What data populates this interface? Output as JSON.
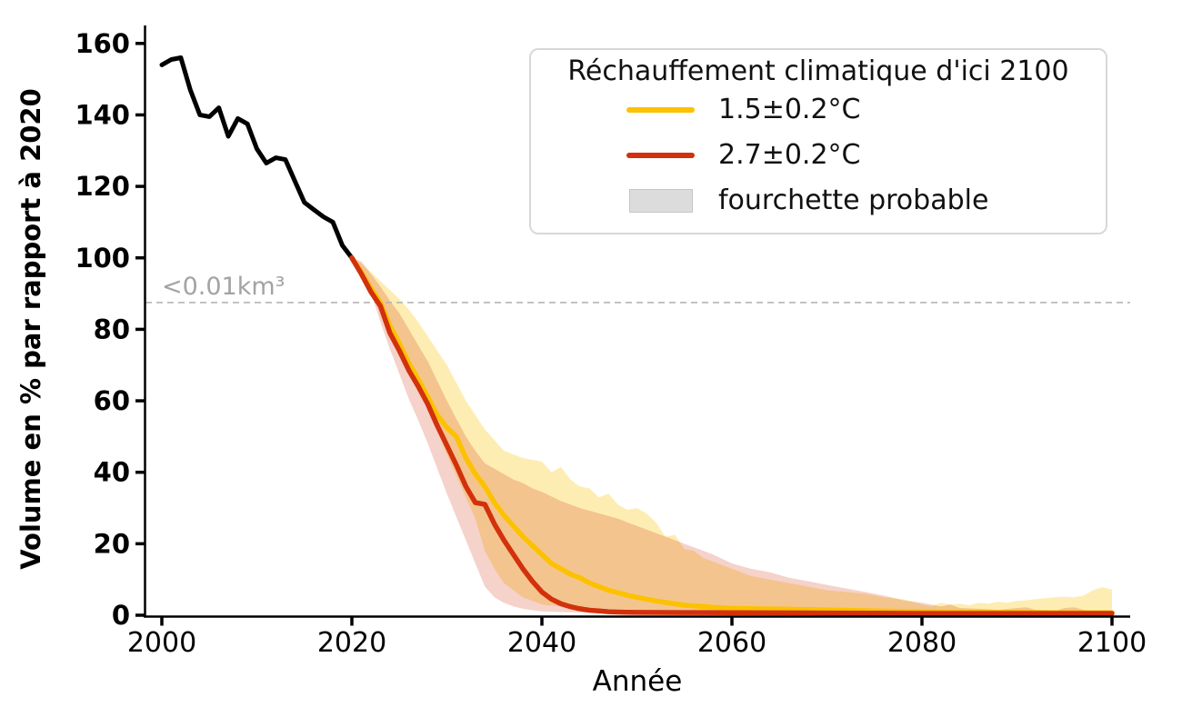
{
  "chart_data": {
    "type": "line",
    "title": "",
    "xlabel": "Année",
    "ylabel": "Volume en % par rapport à 2020",
    "xlim": [
      1998.3,
      2101.8
    ],
    "ylim": [
      0,
      164
    ],
    "xticks": [
      2000,
      2020,
      2040,
      2060,
      2080,
      2100
    ],
    "yticks": [
      0,
      20,
      40,
      60,
      80,
      100,
      120,
      140,
      160
    ],
    "grid": false,
    "annotation": {
      "text": "<0.01km³",
      "y": 87.5,
      "color": "#a3a3a3",
      "line_color": "#b5b5b5"
    },
    "legend": {
      "position": "upper right",
      "title": "Réchauffement climatique d'ici 2100",
      "entries": [
        {
          "type": "line",
          "color": "#fcc200",
          "label": "1.5±0.2°C"
        },
        {
          "type": "line",
          "color": "#d2310c",
          "label": "2.7±0.2°C"
        },
        {
          "type": "patch",
          "color": "#dcdcdc",
          "label": "fourchette probable"
        }
      ]
    },
    "series": [
      {
        "name": "volume-historique",
        "color": "#000000",
        "width": 5,
        "x": [
          2000,
          2001,
          2002,
          2003,
          2004,
          2005,
          2006,
          2007,
          2008,
          2009,
          2010,
          2011,
          2012,
          2013,
          2014,
          2015,
          2016,
          2017,
          2018,
          2019,
          2020
        ],
        "y": [
          154,
          155.5,
          156,
          147,
          140,
          139.5,
          142,
          134,
          139,
          137.5,
          130.5,
          126.5,
          128,
          127.5,
          121.5,
          115.5,
          113.5,
          111.5,
          110,
          103.5,
          100
        ]
      },
      {
        "name": "scenario-1.5C",
        "color": "#fcc200",
        "width": 5.5,
        "x": [
          2020,
          2021,
          2022,
          2023,
          2024,
          2025,
          2026,
          2027,
          2028,
          2029,
          2030,
          2031,
          2032,
          2033,
          2034,
          2035,
          2036,
          2037,
          2038,
          2039,
          2040,
          2041,
          2042,
          2043,
          2044,
          2045,
          2046,
          2047,
          2048,
          2049,
          2050,
          2052,
          2055,
          2058,
          2060,
          2065,
          2070,
          2075,
          2080,
          2085,
          2090,
          2095,
          2100
        ],
        "y": [
          100,
          96,
          91.5,
          87.5,
          81,
          76,
          70.5,
          66,
          61,
          56,
          52.5,
          50,
          44,
          39.5,
          36,
          31.5,
          28,
          25,
          22,
          19.5,
          17,
          14.5,
          13,
          11.5,
          10.5,
          9,
          8,
          7,
          6.3,
          5.6,
          5,
          4,
          2.8,
          2.2,
          1.9,
          1.7,
          1.5,
          1.2,
          1,
          0.9,
          0.8,
          0.7,
          0.7
        ]
      },
      {
        "name": "scenario-2.7C",
        "color": "#d2310c",
        "width": 5.5,
        "x": [
          2020,
          2021,
          2022,
          2023,
          2024,
          2025,
          2026,
          2027,
          2028,
          2029,
          2030,
          2031,
          2032,
          2033,
          2034,
          2035,
          2036,
          2037,
          2038,
          2039,
          2040,
          2041,
          2042,
          2043,
          2044,
          2045,
          2046,
          2047,
          2048,
          2049,
          2050,
          2055,
          2060,
          2065,
          2070,
          2075,
          2080,
          2085,
          2090,
          2095,
          2100
        ],
        "y": [
          100,
          95.5,
          90.5,
          86.5,
          79,
          74,
          68.5,
          64,
          59,
          53,
          47.5,
          42,
          36,
          31.5,
          31,
          25.5,
          21,
          17,
          13,
          9.5,
          6.5,
          4.5,
          3.2,
          2.4,
          1.8,
          1.4,
          1.2,
          1,
          0.9,
          0.85,
          0.8,
          0.75,
          0.7,
          0.65,
          0.6,
          0.55,
          0.5,
          0.5,
          0.5,
          0.5,
          0.5
        ]
      }
    ],
    "bands": [
      {
        "name": "fourchette-1.5C",
        "color": "#fcc200",
        "opacity": 0.3,
        "x": [
          2020,
          2021,
          2022,
          2023,
          2024,
          2025,
          2026,
          2027,
          2028,
          2029,
          2030,
          2031,
          2032,
          2033,
          2034,
          2035,
          2036,
          2037,
          2038,
          2039,
          2040,
          2041,
          2042,
          2043,
          2044,
          2045,
          2046,
          2047,
          2048,
          2049,
          2050,
          2051,
          2052,
          2053,
          2054,
          2055,
          2056,
          2057,
          2058,
          2060,
          2062,
          2064,
          2066,
          2068,
          2070,
          2072,
          2074,
          2076,
          2078,
          2080,
          2081,
          2082,
          2083,
          2084,
          2085,
          2086,
          2087,
          2088,
          2089,
          2090,
          2091,
          2092,
          2093,
          2094,
          2095,
          2096,
          2097,
          2098,
          2099,
          2100
        ],
        "upper": [
          100,
          98.5,
          96,
          93.5,
          91,
          88.5,
          85.5,
          82,
          78,
          74,
          70,
          65,
          60,
          56,
          52,
          49,
          46,
          45,
          44,
          43.5,
          43,
          40,
          41.5,
          38,
          36,
          35.5,
          33,
          34,
          31,
          29.5,
          30,
          28.5,
          26,
          22,
          22.5,
          18.5,
          18,
          16,
          15,
          13,
          11,
          10,
          9,
          8,
          7,
          6.5,
          6,
          5,
          4.5,
          3,
          2.5,
          3.5,
          3,
          3.2,
          2.8,
          3.5,
          3.2,
          3.8,
          3.5,
          4,
          4.2,
          4.5,
          4.8,
          5,
          5.2,
          5,
          5.5,
          7,
          7.8,
          7.2
        ],
        "lower": [
          100,
          97,
          93,
          87.5,
          80,
          74,
          68,
          63,
          58,
          51.5,
          45,
          39,
          33,
          27,
          18,
          13,
          9,
          7,
          5,
          4,
          3,
          2.7,
          2.5,
          2.3,
          2.1,
          2,
          1.9,
          1.8,
          1.7,
          1.6,
          1.5,
          1.4,
          1.35,
          1.3,
          1.25,
          1.2,
          1.15,
          1.1,
          1.05,
          1,
          0.95,
          0.9,
          0.85,
          0.8,
          0.75,
          0.7,
          0.65,
          0.6,
          0.55,
          0.5,
          0.5,
          0.5,
          0.5,
          0.5,
          0.45,
          0.45,
          0.45,
          0.45,
          0.45,
          0.45,
          0.45,
          0.45,
          0.45,
          0.45,
          0.45,
          0.45,
          0.45,
          0.45,
          0.45,
          0.45
        ]
      },
      {
        "name": "fourchette-2.7C",
        "color": "#d2310c",
        "opacity": 0.22,
        "x": [
          2020,
          2021,
          2022,
          2023,
          2024,
          2025,
          2026,
          2027,
          2028,
          2029,
          2030,
          2031,
          2032,
          2033,
          2034,
          2035,
          2036,
          2037,
          2038,
          2039,
          2040,
          2042,
          2044,
          2046,
          2048,
          2050,
          2052,
          2054,
          2056,
          2058,
          2060,
          2062,
          2064,
          2066,
          2068,
          2070,
          2072,
          2074,
          2076,
          2078,
          2080,
          2082,
          2083,
          2084,
          2086,
          2088,
          2090,
          2091,
          2092,
          2094,
          2095,
          2096,
          2097,
          2098,
          2100
        ],
        "upper": [
          100,
          99,
          95.5,
          92,
          88,
          84.5,
          80,
          75.5,
          71,
          65.5,
          60,
          55,
          50,
          46,
          42.5,
          41,
          39.5,
          38,
          37,
          35.5,
          34.5,
          32,
          30,
          28.5,
          27,
          25,
          23,
          21,
          19,
          17,
          14.5,
          13,
          12,
          10.5,
          9.5,
          8.5,
          7.5,
          6.5,
          5.5,
          4.2,
          3.5,
          2.5,
          3,
          2,
          1.8,
          1.5,
          2,
          2.2,
          1.5,
          1.2,
          2,
          2.2,
          1.5,
          1.2,
          1
        ],
        "lower": [
          100,
          96.5,
          90.5,
          82,
          74.5,
          67.5,
          60.5,
          54.5,
          48,
          41,
          34,
          27.5,
          21,
          14.5,
          8,
          5,
          3.5,
          2.5,
          1.8,
          1.4,
          1.1,
          0.9,
          0.8,
          0.7,
          0.65,
          0.6,
          0.55,
          0.5,
          0.45,
          0.4,
          0.38,
          0.35,
          0.33,
          0.3,
          0.3,
          0.28,
          0.27,
          0.26,
          0.25,
          0.23,
          0.22,
          0.2,
          0.2,
          0.2,
          0.2,
          0.2,
          0.2,
          0.2,
          0.2,
          0.2,
          0.2,
          0.2,
          0.2,
          0.2,
          0.2
        ]
      }
    ]
  }
}
